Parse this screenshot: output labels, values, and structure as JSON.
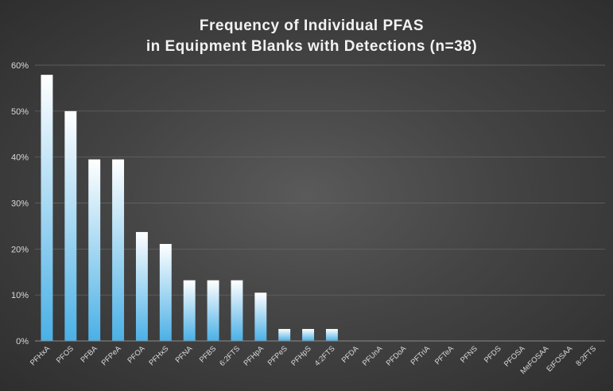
{
  "chart_data": {
    "type": "bar",
    "title": [
      "Frequency of Individual PFAS",
      "in Equipment Blanks with Detections (n=38)"
    ],
    "xlabel": "",
    "ylabel": "",
    "ylim": [
      0,
      0.6
    ],
    "yticks": [
      "0%",
      "10%",
      "20%",
      "30%",
      "40%",
      "50%",
      "60%"
    ],
    "grid": true,
    "categories": [
      "PFHxA",
      "PFOS",
      "PFBA",
      "PFPeA",
      "PFOA",
      "PFHxS",
      "PFNA",
      "PFBS",
      "6:2FTS",
      "PFHpA",
      "PFPeS",
      "PFHpS",
      "4:2FTS",
      "PFDA",
      "PFUnA",
      "PFDoA",
      "PFTriA",
      "PFTeA",
      "PFNS",
      "PFDS",
      "PFOSA",
      "MeFOSAA",
      "EtFOSAA",
      "8:2FTS"
    ],
    "values": [
      0.579,
      0.5,
      0.395,
      0.395,
      0.237,
      0.211,
      0.132,
      0.132,
      0.132,
      0.105,
      0.026,
      0.026,
      0.026,
      0,
      0,
      0,
      0,
      0,
      0,
      0,
      0,
      0,
      0,
      0
    ],
    "colors": {
      "bar_top": "#ffffff",
      "bar_bottom": "#4ab0e6",
      "text": "#d9d9d9"
    }
  }
}
